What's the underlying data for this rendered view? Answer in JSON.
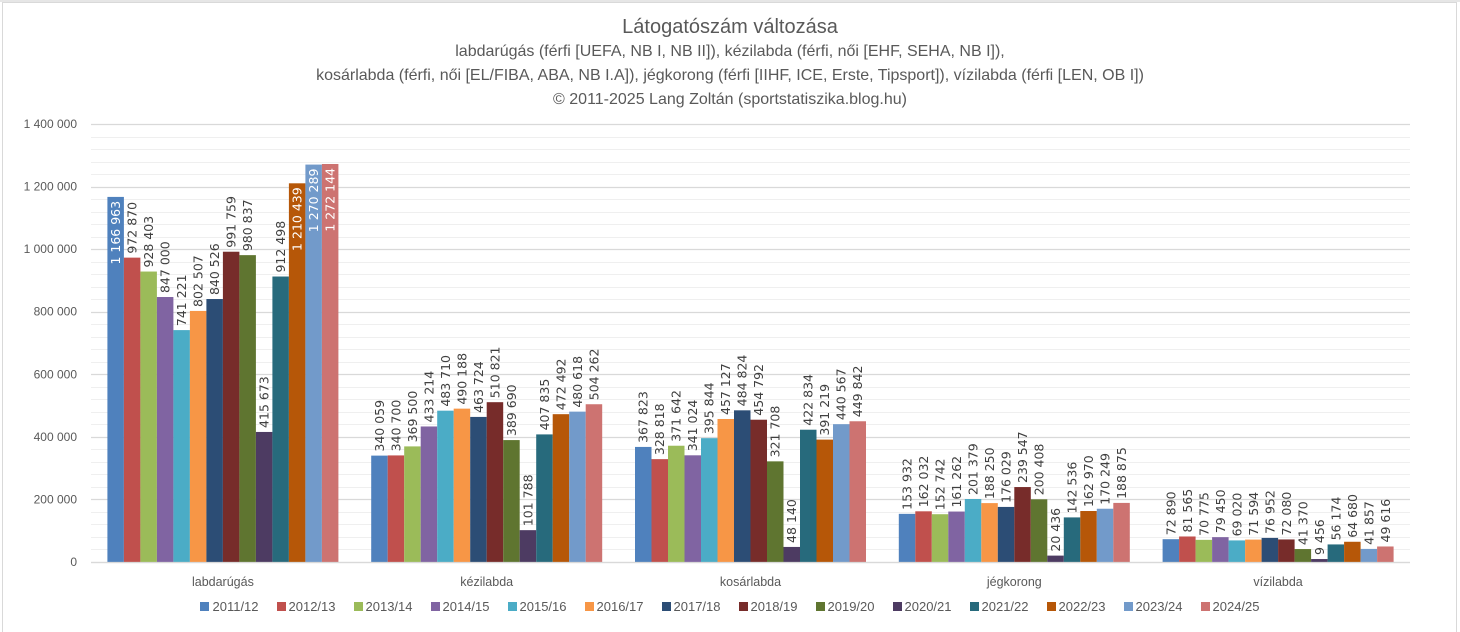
{
  "titles": {
    "title": "Látogatószám változása",
    "subtitle_line1": "labdarúgás (férfi [UEFA, NB I, NB II]), kézilabda (férfi, női [EHF, SEHA, NB I]),",
    "subtitle_line2": "kosárlabda (férfi, női [EL/FIBA, ABA, NB I.A]), jégkorong (férfi [IIHF, ICE, Erste, Tipsport]), vízilabda (férfi [LEN, OB I])",
    "subtitle_line3": "© 2011-2025 Lang Zoltán (sportstatiszika.blog.hu)"
  },
  "chart_data": {
    "type": "bar",
    "title": "Látogatószám változása",
    "xlabel": "",
    "ylabel": "",
    "ylim": [
      0,
      1400000
    ],
    "y_major_step": 200000,
    "y_minor_step": 40000,
    "grid": true,
    "legend_position": "bottom",
    "y_tick_labels": [
      "0",
      "200 000",
      "400 000",
      "600 000",
      "800 000",
      "1 000 000",
      "1 200 000",
      "1 400 000"
    ],
    "categories": [
      "labdarúgás",
      "kézilabda",
      "kosárlabda",
      "jégkorong",
      "vízilabda"
    ],
    "series": [
      {
        "name": "2011/12",
        "color": "#4F81BD",
        "values": [
          1166963,
          340059,
          367823,
          153932,
          72890
        ]
      },
      {
        "name": "2012/13",
        "color": "#C0504D",
        "values": [
          972870,
          340700,
          328818,
          162032,
          81565
        ]
      },
      {
        "name": "2013/14",
        "color": "#9BBB59",
        "values": [
          928403,
          369500,
          371642,
          152742,
          70775
        ]
      },
      {
        "name": "2014/15",
        "color": "#8064A2",
        "values": [
          847000,
          433214,
          341024,
          161262,
          79450
        ]
      },
      {
        "name": "2015/16",
        "color": "#4BACC6",
        "values": [
          741221,
          483710,
          395844,
          201379,
          69020
        ]
      },
      {
        "name": "2016/17",
        "color": "#F79646",
        "values": [
          802507,
          490188,
          457127,
          188250,
          71594
        ]
      },
      {
        "name": "2017/18",
        "color": "#2C4D75",
        "values": [
          840526,
          463724,
          484824,
          176029,
          76952
        ]
      },
      {
        "name": "2018/19",
        "color": "#772C2A",
        "values": [
          991759,
          510821,
          454792,
          239547,
          72080
        ]
      },
      {
        "name": "2019/20",
        "color": "#5F7530",
        "values": [
          980837,
          389690,
          321708,
          200408,
          41370
        ]
      },
      {
        "name": "2020/21",
        "color": "#4D3B62",
        "values": [
          415673,
          101788,
          48140,
          20436,
          9456
        ]
      },
      {
        "name": "2021/22",
        "color": "#276A7C",
        "values": [
          912498,
          407835,
          422834,
          142536,
          56174
        ]
      },
      {
        "name": "2022/23",
        "color": "#B65708",
        "values": [
          1210439,
          472492,
          391219,
          162970,
          64680
        ]
      },
      {
        "name": "2023/24",
        "color": "#729ACA",
        "values": [
          1270289,
          480618,
          440567,
          170249,
          41857
        ]
      },
      {
        "name": "2024/25",
        "color": "#CD7371",
        "values": [
          1272144,
          504262,
          449842,
          188875,
          49616
        ]
      }
    ],
    "data_labels_inside_end": {
      "1166963": true,
      "1210439": true,
      "1270289": true,
      "1272144": true
    }
  }
}
